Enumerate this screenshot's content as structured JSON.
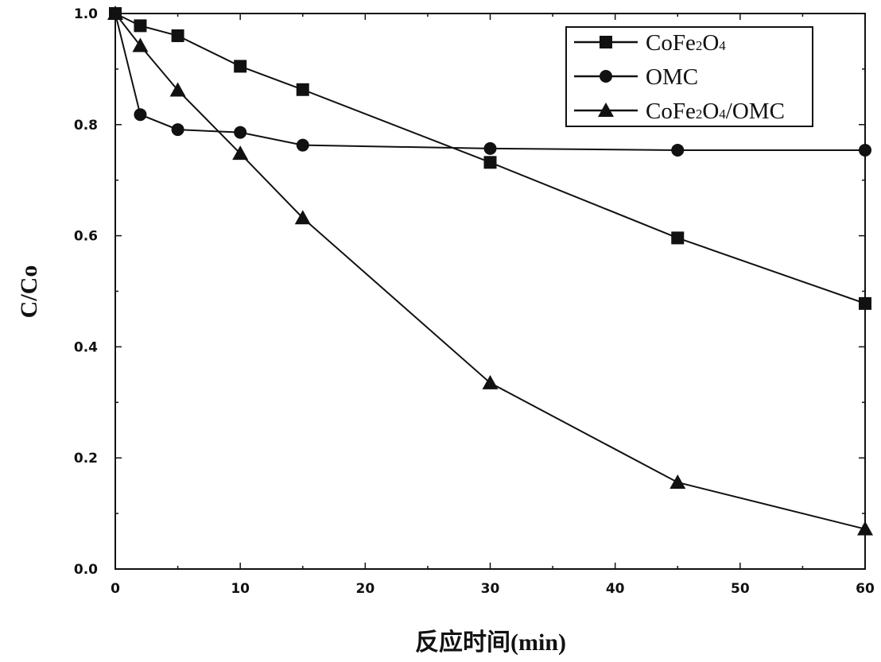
{
  "chart_data": {
    "type": "line",
    "xlabel": "反应时间(min)",
    "ylabel": "C/Co",
    "xlim": [
      0,
      60
    ],
    "ylim": [
      0,
      1.0
    ],
    "xticks": [
      0,
      10,
      20,
      30,
      40,
      50,
      60
    ],
    "yticks": [
      0.0,
      0.2,
      0.4,
      0.6,
      0.8,
      1.0
    ],
    "xtick_labels": [
      "0",
      "10",
      "20",
      "30",
      "40",
      "50",
      "60"
    ],
    "ytick_labels": [
      "0.0",
      "0.2",
      "0.4",
      "0.6",
      "0.8",
      "1.0"
    ],
    "legend_position": "top-right",
    "grid": false,
    "series": [
      {
        "name": "CoFe2O4",
        "legend_parts": [
          [
            "CoFe",
            false
          ],
          [
            "2",
            true
          ],
          [
            "O",
            false
          ],
          [
            "4",
            true
          ]
        ],
        "marker": "square",
        "x": [
          0,
          2,
          5,
          10,
          15,
          30,
          45,
          60
        ],
        "y": [
          1.0,
          0.978,
          0.96,
          0.905,
          0.863,
          0.732,
          0.596,
          0.478
        ]
      },
      {
        "name": "OMC",
        "legend_parts": [
          [
            "OMC",
            false
          ]
        ],
        "marker": "circle",
        "x": [
          0,
          2,
          5,
          10,
          15,
          30,
          45,
          60
        ],
        "y": [
          1.0,
          0.818,
          0.791,
          0.786,
          0.763,
          0.757,
          0.754,
          0.754
        ]
      },
      {
        "name": "CoFe2O4/OMC",
        "legend_parts": [
          [
            "CoFe",
            false
          ],
          [
            "2",
            true
          ],
          [
            "O",
            false
          ],
          [
            "4",
            true
          ],
          [
            "/OMC",
            false
          ]
        ],
        "marker": "triangle",
        "x": [
          0,
          2,
          5,
          10,
          15,
          30,
          45,
          60
        ],
        "y": [
          1.0,
          0.942,
          0.862,
          0.748,
          0.632,
          0.335,
          0.156,
          0.072
        ]
      }
    ]
  }
}
